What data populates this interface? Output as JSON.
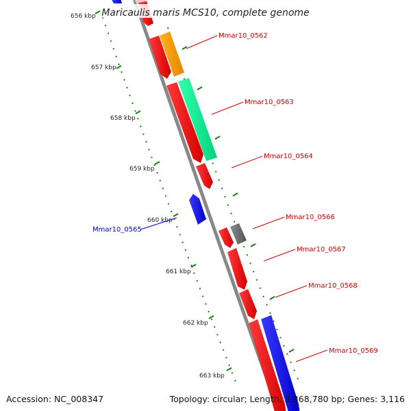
{
  "title": "Maricaulis maris MCS10, complete genome",
  "kbp_labels": [
    "656 kbp",
    "657 kbp",
    "658 kbp",
    "659 kbp",
    "660 kbp",
    "661 kbp",
    "662 kbp",
    "663 kbp"
  ],
  "genes": [
    {
      "label": "Mmar10_0562",
      "color": "#cc0000"
    },
    {
      "label": "Mmar10_0563",
      "color": "#cc0000"
    },
    {
      "label": "Mmar10_0564",
      "color": "#cc0000"
    },
    {
      "label": "Mmar10_0565",
      "color": "#0000cc"
    },
    {
      "label": "Mmar10_0566",
      "color": "#cc0000"
    },
    {
      "label": "Mmar10_0567",
      "color": "#cc0000"
    },
    {
      "label": "Mmar10_0568",
      "color": "#cc0000"
    },
    {
      "label": "Mmar10_0569",
      "color": "#cc0000"
    }
  ],
  "footer": {
    "accession": "Accession: NC_008347",
    "topology_pre": "Topology: circular; Length: ",
    "length": "3,368,780 bp",
    "topology_post": "; Genes: 3,116"
  },
  "colors": {
    "forward_cds": "#ff0000",
    "reverse_cds": "#0000ff",
    "backbone": "#888888",
    "tick": "#1a7a1a",
    "orange_feature": "#ff9900",
    "green_feature": "#00ee88",
    "gray_feature": "#777777"
  }
}
